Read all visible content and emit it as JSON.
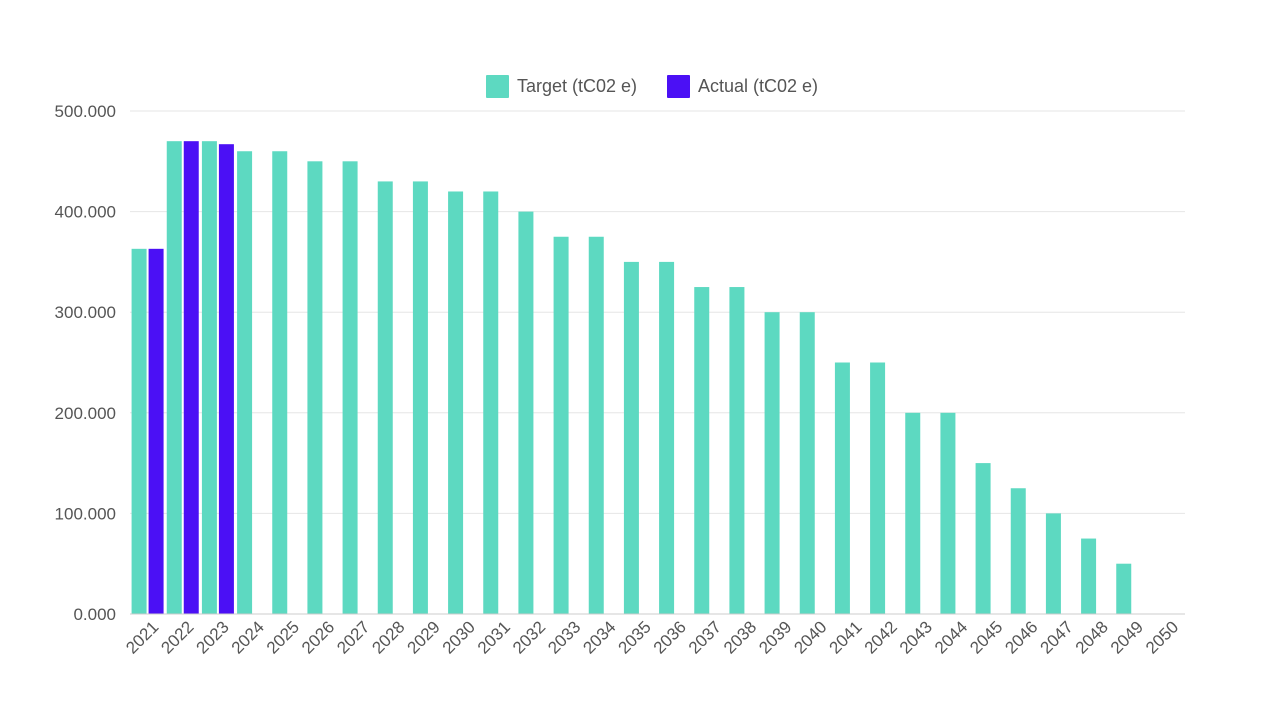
{
  "chart_data": {
    "type": "bar",
    "title": "",
    "xlabel": "",
    "ylabel": "",
    "ylim": [
      0,
      500000
    ],
    "yticks": [
      0,
      100000,
      200000,
      300000,
      400000,
      500000
    ],
    "ytick_labels": [
      "0.000",
      "100.000",
      "200.000",
      "300.000",
      "400.000",
      "500.000"
    ],
    "grid": true,
    "legend_position": "top-center",
    "categories": [
      "2021",
      "2022",
      "2023",
      "2024",
      "2025",
      "2026",
      "2027",
      "2028",
      "2029",
      "2030",
      "2031",
      "2032",
      "2033",
      "2034",
      "2035",
      "2036",
      "2037",
      "2038",
      "2039",
      "2040",
      "2041",
      "2042",
      "2043",
      "2044",
      "2045",
      "2046",
      "2047",
      "2048",
      "2049",
      "2050"
    ],
    "series": [
      {
        "name": "Target (tC02 e)",
        "color": "#5dd9c1",
        "values": [
          363000,
          470000,
          470000,
          460000,
          460000,
          450000,
          450000,
          430000,
          430000,
          420000,
          420000,
          400000,
          375000,
          375000,
          350000,
          350000,
          325000,
          325000,
          300000,
          300000,
          250000,
          250000,
          200000,
          200000,
          150000,
          125000,
          100000,
          75000,
          50000,
          0
        ]
      },
      {
        "name": "Actual (tC02 e)",
        "color": "#4b10f5",
        "values": [
          363000,
          470000,
          467000,
          null,
          null,
          null,
          null,
          null,
          null,
          null,
          null,
          null,
          null,
          null,
          null,
          null,
          null,
          null,
          null,
          null,
          null,
          null,
          null,
          null,
          null,
          null,
          null,
          null,
          null,
          null
        ]
      }
    ]
  }
}
